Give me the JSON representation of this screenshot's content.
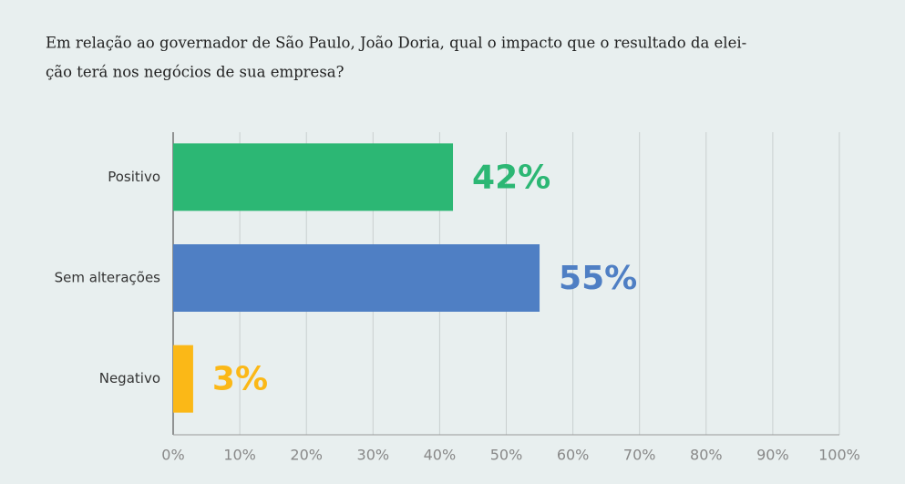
{
  "chart_data": {
    "type": "bar",
    "orientation": "horizontal",
    "title": [
      "Em relação ao governador de São Paulo, João Doria, qual o impacto que o resultado da elei-",
      "ção terá nos negócios de sua empresa?"
    ],
    "categories": [
      "Positivo",
      "Sem alterações",
      "Negativo"
    ],
    "values": [
      42,
      55,
      3
    ],
    "value_labels": [
      "42%",
      "55%",
      "3%"
    ],
    "colors": [
      "#2cb774",
      "#4f7fc4",
      "#fbb817"
    ],
    "xlim": [
      0,
      100
    ],
    "xticks": [
      {
        "value": 0,
        "label": "0%"
      },
      {
        "value": 10,
        "label": "10%"
      },
      {
        "value": 20,
        "label": "20%"
      },
      {
        "value": 30,
        "label": "30%"
      },
      {
        "value": 40,
        "label": "40%"
      },
      {
        "value": 50,
        "label": "50%"
      },
      {
        "value": 60,
        "label": "60%"
      },
      {
        "value": 70,
        "label": "70%"
      },
      {
        "value": 80,
        "label": "80%"
      },
      {
        "value": 90,
        "label": "90%"
      },
      {
        "value": 100,
        "label": "100%"
      }
    ],
    "grid": true
  }
}
